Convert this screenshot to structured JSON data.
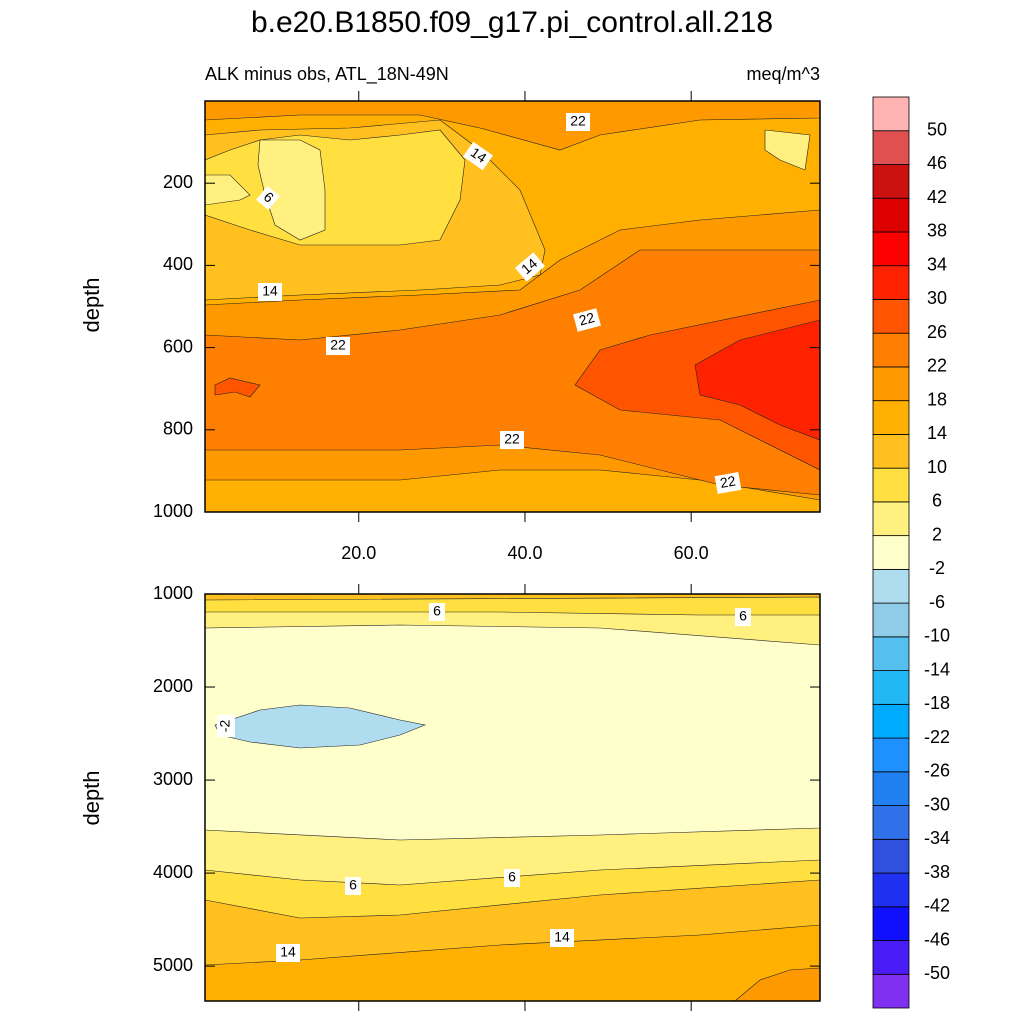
{
  "title": "b.e20.B1850.f09_g17.pi_control.all.218",
  "subtitle_left": "ALK minus obs, ATL_18N-49N",
  "subtitle_right": "meq/m^3",
  "colorbar": {
    "levels": [
      -50,
      -46,
      -42,
      -38,
      -34,
      -30,
      -26,
      -22,
      -18,
      -14,
      -10,
      -6,
      -2,
      2,
      6,
      10,
      14,
      18,
      22,
      26,
      30,
      34,
      38,
      42,
      46,
      50
    ],
    "colors": [
      "#8030f0",
      "#4a1cf8",
      "#1010ff",
      "#2030f0",
      "#3050e0",
      "#3070e8",
      "#2080f0",
      "#1e90ff",
      "#00aaff",
      "#22b8f5",
      "#55bff0",
      "#90cce8",
      "#b0dcf0",
      "#ffffcc",
      "#fff080",
      "#ffe040",
      "#ffc020",
      "#ffb000",
      "#ff9900",
      "#ff7f00",
      "#ff5500",
      "#ff2200",
      "#ff0000",
      "#dd0000",
      "#cc1111",
      "#e05050",
      "#ffb3b3"
    ]
  },
  "chart_data": [
    {
      "type": "contour",
      "ylabel": "depth",
      "xlim": [
        1.5,
        75.5
      ],
      "xticks": [
        {
          "value": 20,
          "label": "20.0"
        },
        {
          "value": 40,
          "label": "40.0"
        },
        {
          "value": 60,
          "label": "60.0"
        }
      ],
      "ylim": [
        1000,
        0
      ],
      "yticks": [
        200,
        400,
        600,
        800,
        1000
      ],
      "contour_labels": [
        22,
        14,
        6,
        14,
        14,
        22,
        22,
        22,
        22
      ]
    },
    {
      "type": "contour",
      "ylabel": "depth",
      "xlim": [
        1.5,
        75.5
      ],
      "ylim": [
        5375,
        1000
      ],
      "yticks": [
        1000,
        2000,
        3000,
        4000,
        5000
      ],
      "contour_labels": [
        6,
        6,
        -2,
        6,
        6,
        14,
        14
      ]
    }
  ]
}
